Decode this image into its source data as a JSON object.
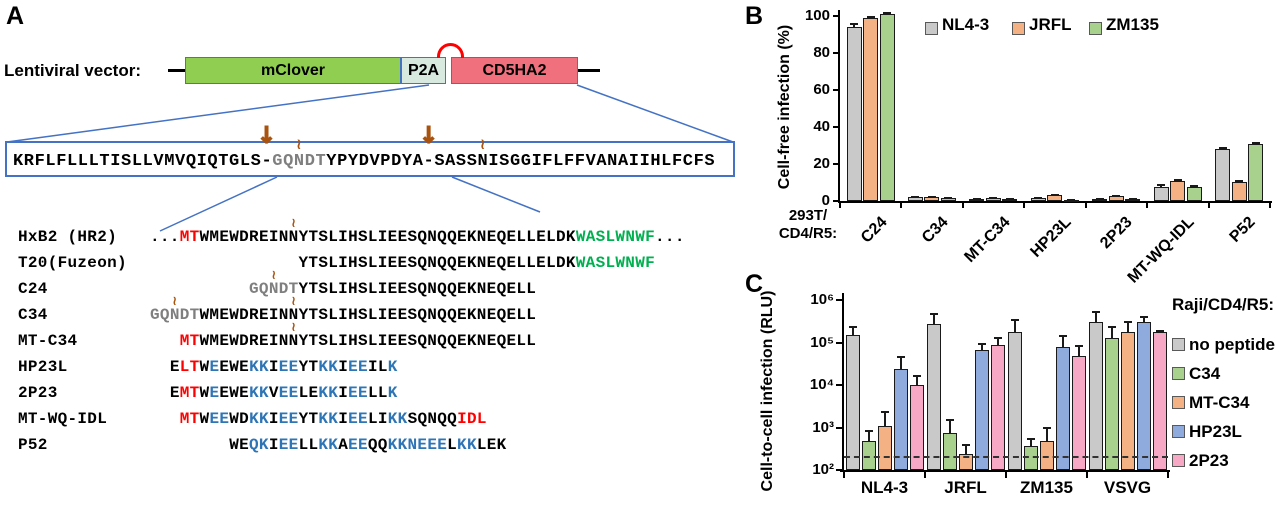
{
  "figure": {
    "panel_a_label": "A",
    "panel_b_label": "B",
    "panel_c_label": "C"
  },
  "panelA": {
    "vector_label": "Lentiviral vector:",
    "vector_boxes": [
      {
        "label": "mClover",
        "fill": "#8FCE50"
      },
      {
        "label": "P2A",
        "fill": "#D8E9E0"
      },
      {
        "label": "CD5HA2",
        "fill": "#F1707E"
      }
    ],
    "sequence_box": {
      "segments": [
        {
          "t": "KRFLFLLLTISLLVMVQIQTGLS"
        },
        {
          "t": "-",
          "m": "arrow"
        },
        {
          "t": "GQ",
          "c": "gray"
        },
        {
          "t": "N",
          "c": "gray",
          "m": "squiggle"
        },
        {
          "t": "DT",
          "c": "gray"
        },
        {
          "t": "YPYDVPDYA"
        },
        {
          "t": "-",
          "m": "arrow"
        },
        {
          "t": "SASS"
        },
        {
          "t": "N",
          "m": "squiggle"
        },
        {
          "t": "ISGGIFLFFVANAIIHLFCFS"
        }
      ]
    },
    "alignment_rows": [
      {
        "name": "HxB2 (HR2)",
        "offset": 0,
        "segments": [
          {
            "t": "..."
          },
          {
            "t": "MT",
            "c": "red"
          },
          {
            "t": "WMEWDREIN"
          },
          {
            "t": "N",
            "m": "squiggle"
          },
          {
            "t": "YTSLIHSLIEESQNQQEKNEQELLELDK"
          },
          {
            "t": "WASLWNWF",
            "c": "green"
          },
          {
            "t": "..."
          }
        ]
      },
      {
        "name": "T20(Fuzeon)",
        "offset": 15,
        "segments": [
          {
            "t": "YTSLIHSLIEESQNQQEKNEQELLELDK"
          },
          {
            "t": "WASLWNWF",
            "c": "green"
          }
        ]
      },
      {
        "name": "C24",
        "offset": 10,
        "segments": [
          {
            "t": "GQ",
            "c": "gray"
          },
          {
            "t": "N",
            "c": "gray",
            "m": "squiggle"
          },
          {
            "t": "DT",
            "c": "gray"
          },
          {
            "t": "YTSLIHSLIEESQNQQEKNEQELL"
          }
        ]
      },
      {
        "name": "C34",
        "offset": 0,
        "segments": [
          {
            "t": "GQ",
            "c": "gray"
          },
          {
            "t": "N",
            "c": "gray",
            "m": "squiggle"
          },
          {
            "t": "DT",
            "c": "gray"
          },
          {
            "t": "WMEWDREIN"
          },
          {
            "t": "N",
            "m": "squiggle"
          },
          {
            "t": "YTSLIHSLIEESQNQQEKNEQELL"
          }
        ]
      },
      {
        "name": "MT-C34",
        "offset": 3,
        "segments": [
          {
            "t": "MT",
            "c": "red"
          },
          {
            "t": "WMEWDREIN"
          },
          {
            "t": "N",
            "m": "squiggle"
          },
          {
            "t": "YTSLIHSLIEESQNQQEKNEQELL"
          }
        ]
      },
      {
        "name": "HP23L",
        "offset": 2,
        "segments": [
          {
            "t": "E"
          },
          {
            "t": "LT",
            "c": "red"
          },
          {
            "t": "W"
          },
          {
            "t": "E",
            "c": "blue"
          },
          {
            "t": "EWE"
          },
          {
            "t": "KK",
            "c": "blue"
          },
          {
            "t": "I"
          },
          {
            "t": "EE",
            "c": "blue"
          },
          {
            "t": "YT"
          },
          {
            "t": "KK",
            "c": "blue"
          },
          {
            "t": "I"
          },
          {
            "t": "EE",
            "c": "blue"
          },
          {
            "t": "IL"
          },
          {
            "t": "K",
            "c": "blue"
          }
        ]
      },
      {
        "name": "2P23",
        "offset": 2,
        "segments": [
          {
            "t": "E"
          },
          {
            "t": "MT",
            "c": "red"
          },
          {
            "t": "W"
          },
          {
            "t": "E",
            "c": "blue"
          },
          {
            "t": "EWE"
          },
          {
            "t": "KK",
            "c": "blue"
          },
          {
            "t": "V"
          },
          {
            "t": "EE",
            "c": "blue"
          },
          {
            "t": "LE"
          },
          {
            "t": "KK",
            "c": "blue"
          },
          {
            "t": "I"
          },
          {
            "t": "EE",
            "c": "blue"
          },
          {
            "t": "LL"
          },
          {
            "t": "K",
            "c": "blue"
          }
        ]
      },
      {
        "name": "MT-WQ-IDL",
        "offset": 3,
        "segments": [
          {
            "t": "MT",
            "c": "red"
          },
          {
            "t": "W"
          },
          {
            "t": "EE",
            "c": "blue"
          },
          {
            "t": "WD"
          },
          {
            "t": "KK",
            "c": "blue"
          },
          {
            "t": "I"
          },
          {
            "t": "EE",
            "c": "blue"
          },
          {
            "t": "YT"
          },
          {
            "t": "KK",
            "c": "blue"
          },
          {
            "t": "I"
          },
          {
            "t": "EE",
            "c": "blue"
          },
          {
            "t": "LI"
          },
          {
            "t": "KK",
            "c": "blue"
          },
          {
            "t": "SQNQQ"
          },
          {
            "t": "IDL",
            "c": "red"
          }
        ]
      },
      {
        "name": "P52",
        "offset": 8,
        "segments": [
          {
            "t": "WE"
          },
          {
            "t": "QK",
            "c": "blue"
          },
          {
            "t": "I"
          },
          {
            "t": "EE",
            "c": "blue"
          },
          {
            "t": "LL"
          },
          {
            "t": "KK",
            "c": "blue"
          },
          {
            "t": "A"
          },
          {
            "t": "EE",
            "c": "blue"
          },
          {
            "t": "QQ"
          },
          {
            "t": "KK",
            "c": "blue"
          },
          {
            "t": "NEEE",
            "c": "blue"
          },
          {
            "t": "L"
          },
          {
            "t": "KK",
            "c": "blue"
          },
          {
            "t": "LEK"
          }
        ]
      }
    ],
    "text_colors": {
      "black": "#000000",
      "red": "#FF0000",
      "blue": "#2E75B6",
      "green": "#00B050",
      "gray": "#7F7F7F",
      "marker": "#A9530E"
    }
  },
  "chart_data": [
    {
      "id": "B",
      "type": "bar",
      "ylabel": "Cell-free infection (%)",
      "axis_corner_label_line1": "293T/",
      "axis_corner_label_line2": "CD4/R5:",
      "ylim": [
        0,
        100
      ],
      "yticks": [
        0,
        20,
        40,
        60,
        80,
        100
      ],
      "grid": false,
      "legend_position": "top",
      "categories": [
        "C24",
        "C34",
        "MT-C34",
        "HP23L",
        "2P23",
        "MT-WQ-IDL",
        "P52"
      ],
      "series": [
        {
          "name": "NL4-3",
          "color": "#C9C9C9",
          "values": [
            94,
            2.3,
            1,
            1.4,
            1,
            7.8,
            28
          ],
          "errors": [
            2,
            0.6,
            0.5,
            0.5,
            0.5,
            1.2,
            1
          ]
        },
        {
          "name": "JRFL",
          "color": "#F4B183",
          "values": [
            99,
            2.3,
            1.8,
            3.4,
            2.6,
            10.8,
            10.5
          ],
          "errors": [
            1,
            0.6,
            0.6,
            0.6,
            0.6,
            1,
            1
          ]
        },
        {
          "name": "ZM135",
          "color": "#A9D18E",
          "values": [
            101,
            1.4,
            1,
            0.8,
            1,
            7.6,
            31
          ],
          "errors": [
            1,
            0.5,
            0.5,
            0.4,
            0.5,
            1,
            1
          ]
        }
      ]
    },
    {
      "id": "C",
      "type": "bar",
      "yscale": "log",
      "ylabel": "Cell-to-cell infection (RLU)",
      "ylim": [
        100,
        1000000
      ],
      "ytick_labels": [
        "10²",
        "10³",
        "10⁴",
        "10⁵",
        "10⁶"
      ],
      "grid": false,
      "legend_title": "Raji/CD4/R5:",
      "legend_position": "right",
      "baseline_dash_value": 200,
      "categories": [
        "NL4-3",
        "JRFL",
        "ZM135",
        "VSVG"
      ],
      "series": [
        {
          "name": "no peptide",
          "color": "#C9C9C9",
          "values": [
            150000,
            270000,
            180000,
            300000
          ],
          "errors_top": [
            240000,
            500000,
            350000,
            550000
          ]
        },
        {
          "name": "C34",
          "color": "#A9D18E",
          "values": [
            480,
            740,
            370,
            130000
          ],
          "errors_top": [
            870,
            1600,
            560,
            250000
          ]
        },
        {
          "name": "MT-C34",
          "color": "#F4B183",
          "values": [
            1100,
            240,
            480,
            180000
          ],
          "errors_top": [
            2500,
            400,
            1050,
            320000
          ]
        },
        {
          "name": "HP23L",
          "color": "#8FAADC",
          "values": [
            24000,
            68000,
            80000,
            300000
          ],
          "errors_top": [
            48000,
            95000,
            150000,
            420000
          ]
        },
        {
          "name": "2P23",
          "color": "#F7A8C4",
          "values": [
            10000,
            87000,
            48000,
            180000
          ],
          "errors_top": [
            17000,
            135000,
            87000,
            200000
          ]
        }
      ]
    }
  ]
}
